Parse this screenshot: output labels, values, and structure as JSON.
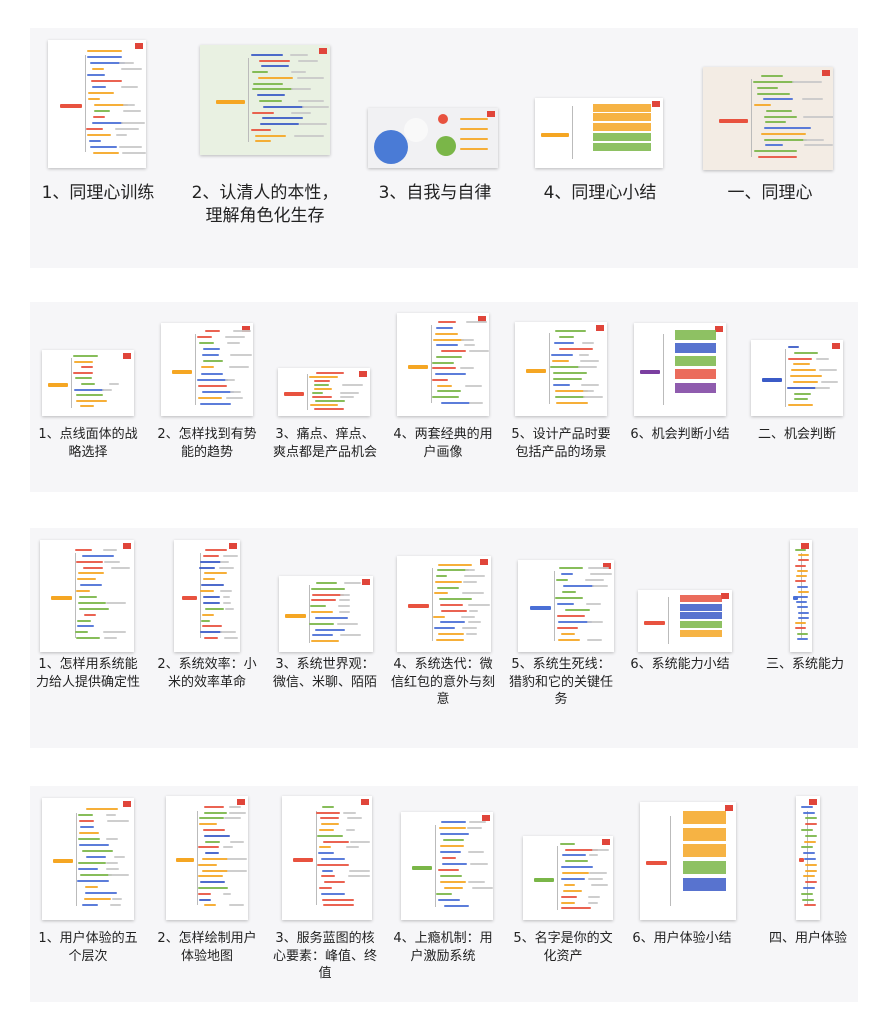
{
  "sections": [
    {
      "items": [
        {
          "label": "1、同理心训练",
          "style": "vertical",
          "palette": [
            "#e8523f",
            "#f5a623",
            "#7ab648",
            "#4a6fd6"
          ]
        },
        {
          "label": "2、认清人的本性，理解角色化生存",
          "style": "green",
          "palette": [
            "#f5a623",
            "#7ab648",
            "#3b5bc7",
            "#e8523f"
          ]
        },
        {
          "label": "3、自我与自律",
          "style": "circles",
          "palette": [
            "#4a7bd6",
            "#7ab648",
            "#e8523f",
            "#f5a623"
          ]
        },
        {
          "label": "4、同理心小结",
          "style": "summary",
          "palette": [
            "#f5a623",
            "#4a6fd6",
            "#7ab648",
            "#e8523f"
          ]
        },
        {
          "label": "一、同理心",
          "style": "tan",
          "palette": [
            "#e8523f",
            "#7ab648",
            "#4a6fd6",
            "#f5a623"
          ]
        }
      ]
    },
    {
      "items": [
        {
          "label": "1、点线面体的战略选择",
          "style": "wide",
          "palette": [
            "#f5a623",
            "#4a6fd6",
            "#7ab648",
            "#e8523f"
          ]
        },
        {
          "label": "2、怎样找到有势能的趋势",
          "style": "tall",
          "palette": [
            "#f5a623",
            "#4a6fd6",
            "#7ab648",
            "#e8523f"
          ]
        },
        {
          "label": "3、痛点、痒点、爽点都是产品机会",
          "style": "wide",
          "palette": [
            "#e8523f",
            "#f5a623",
            "#4a6fd6",
            "#7ab648"
          ]
        },
        {
          "label": "4、两套经典的用户画像",
          "style": "tall",
          "palette": [
            "#f5a623",
            "#e8523f",
            "#7ab648",
            "#4a6fd6"
          ]
        },
        {
          "label": "5、设计产品时要包括产品的场景",
          "style": "tall",
          "palette": [
            "#f5a623",
            "#4a6fd6",
            "#7ab648",
            "#e8523f"
          ]
        },
        {
          "label": "6、机会判断小结",
          "style": "summary",
          "palette": [
            "#7b3fa0",
            "#e8523f",
            "#3b5bc7",
            "#7ab648"
          ]
        },
        {
          "label": "二、机会判断",
          "style": "vertical",
          "palette": [
            "#3b5bc7",
            "#f5a623",
            "#e8523f",
            "#7ab648"
          ]
        }
      ]
    },
    {
      "items": [
        {
          "label": "1、怎样用系统能力给人提供确定性",
          "style": "tall",
          "palette": [
            "#f5a623",
            "#4a6fd6",
            "#7ab648",
            "#e8523f"
          ]
        },
        {
          "label": "2、系统效率：小米的效率革命",
          "style": "tall",
          "palette": [
            "#e8523f",
            "#f5a623",
            "#3b5bc7",
            "#7ab648"
          ]
        },
        {
          "label": "3、系统世界观：微信、米聊、陌陌",
          "style": "wide",
          "palette": [
            "#f5a623",
            "#7ab648",
            "#e8523f",
            "#4a6fd6"
          ]
        },
        {
          "label": "4、系统迭代：微信红包的意外与刻意",
          "style": "tall",
          "palette": [
            "#e8523f",
            "#7ab648",
            "#f5a623",
            "#4a6fd6"
          ]
        },
        {
          "label": "5、系统生死线：猎豹和它的关键任务",
          "style": "tall",
          "palette": [
            "#4a6fd6",
            "#e8523f",
            "#f5a623",
            "#7ab648"
          ]
        },
        {
          "label": "6、系统能力小结",
          "style": "summary",
          "palette": [
            "#e8523f",
            "#f5a623",
            "#3b5bc7",
            "#7ab648"
          ]
        },
        {
          "label": "三、系统能力",
          "style": "strip",
          "palette": [
            "#4a6fd6",
            "#7ab648",
            "#e8523f",
            "#f5a623"
          ]
        }
      ]
    },
    {
      "items": [
        {
          "label": "1、用户体验的五个层次",
          "style": "tall",
          "palette": [
            "#f5a623",
            "#e8523f",
            "#4a6fd6",
            "#7ab648"
          ]
        },
        {
          "label": "2、怎样绘制用户体验地图",
          "style": "tall",
          "palette": [
            "#f5a623",
            "#e8523f",
            "#3b5bc7",
            "#7ab648"
          ]
        },
        {
          "label": "3、服务蓝图的核心要素：峰值、终值",
          "style": "tall",
          "palette": [
            "#e8523f",
            "#f5a623",
            "#7ab648",
            "#4a6fd6"
          ]
        },
        {
          "label": "4、上瘾机制：用户激励系统",
          "style": "tall",
          "palette": [
            "#7ab648",
            "#e8523f",
            "#f5a623",
            "#4a6fd6"
          ]
        },
        {
          "label": "5、名字是你的文化资产",
          "style": "tall",
          "palette": [
            "#7ab648",
            "#e8523f",
            "#f5a623",
            "#4a6fd6"
          ]
        },
        {
          "label": "6、用户体验小结",
          "style": "summary",
          "palette": [
            "#e8523f",
            "#f5a623",
            "#7ab648",
            "#3b5bc7"
          ]
        },
        {
          "label": "四、用户体验",
          "style": "strip",
          "palette": [
            "#e8523f",
            "#f5a623",
            "#4a6fd6",
            "#7ab648"
          ]
        }
      ]
    }
  ]
}
